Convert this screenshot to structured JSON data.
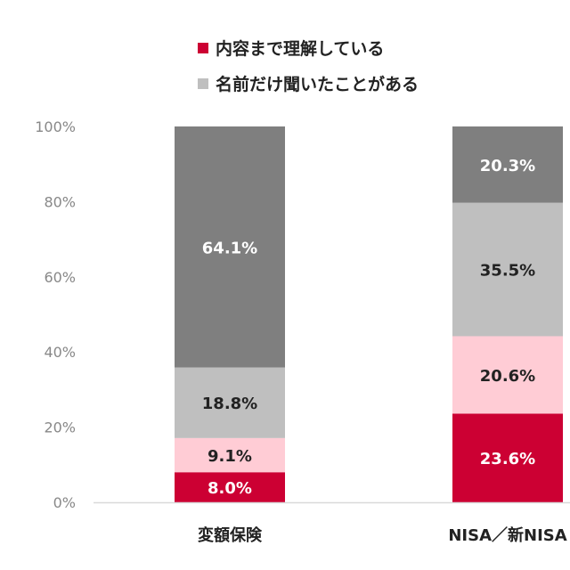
{
  "chart_data": {
    "type": "bar",
    "stacked": true,
    "categories": [
      "変額保険",
      "NISA／新NISA"
    ],
    "series": [
      {
        "name": "内容まで理解している",
        "color": "#cc0033",
        "label_color": "#ffffff",
        "values": [
          8.0,
          23.6
        ],
        "labels": [
          "8.0%",
          "23.6%"
        ]
      },
      {
        "color": "#ffccd5",
        "label_color": "#222222",
        "values": [
          9.1,
          20.6
        ],
        "labels": [
          "9.1%",
          "20.6%"
        ]
      },
      {
        "name": "名前だけ聞いたことがある",
        "color": "#bfbfbf",
        "label_color": "#222222",
        "values": [
          18.8,
          35.5
        ],
        "labels": [
          "18.8%",
          "35.5%"
        ]
      },
      {
        "color": "#7f7f7f",
        "label_color": "#ffffff",
        "values": [
          64.1,
          20.3
        ],
        "labels": [
          "64.1%",
          "20.3%"
        ]
      }
    ],
    "yticks": [
      "0%",
      "20%",
      "40%",
      "60%",
      "80%",
      "100%"
    ],
    "ylim": [
      0,
      100
    ],
    "grid": false,
    "legend_placement": "top"
  }
}
